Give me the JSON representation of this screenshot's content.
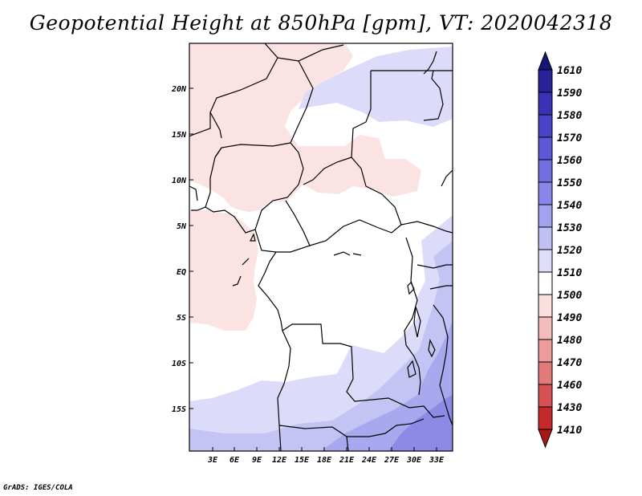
{
  "title": "Geopotential Height at 850hPa [gpm], VT: 2020042318",
  "credit": "GrADS: IGES/COLA",
  "axes": {
    "lon_ticks": [
      "3E",
      "6E",
      "9E",
      "12E",
      "15E",
      "18E",
      "21E",
      "24E",
      "27E",
      "30E",
      "33E"
    ],
    "lat_ticks": [
      "20N",
      "15N",
      "10N",
      "5N",
      "EQ",
      "5S",
      "10S",
      "15S"
    ]
  },
  "colorbar": {
    "levels": [
      "1610",
      "1590",
      "1580",
      "1570",
      "1560",
      "1550",
      "1540",
      "1530",
      "1520",
      "1510",
      "1500",
      "1490",
      "1480",
      "1470",
      "1460",
      "1430",
      "1410"
    ],
    "colors": [
      "#1a1478",
      "#2a229a",
      "#3a32b4",
      "#4a44c8",
      "#5c58d6",
      "#706ee0",
      "#8886e8",
      "#a2a2ee",
      "#c0c0f4",
      "#dedefa",
      "#ffffff",
      "#fbdede",
      "#f4bcbc",
      "#ec9c9c",
      "#e27a7a",
      "#d65252",
      "#c42a2a",
      "#a81616"
    ]
  },
  "map": {
    "colors": {
      "pink": "#fbe3e3",
      "white": "#ffffff",
      "lavender": "#dcdcfa",
      "light_blue": "#c4c4f4",
      "blue": "#a8a8ee",
      "mid_blue": "#8c8ae4",
      "dark_blue": "#7470d8"
    }
  }
}
